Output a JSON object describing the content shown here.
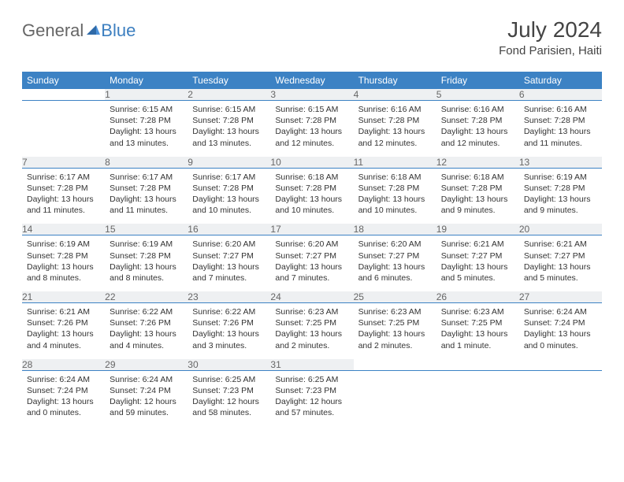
{
  "brand": {
    "text1": "General",
    "text2": "Blue"
  },
  "title": "July 2024",
  "location": "Fond Parisien, Haiti",
  "colors": {
    "header_bg": "#3c82c4",
    "header_text": "#ffffff",
    "daynum_bg": "#eef0f2",
    "daynum_text": "#666666",
    "border": "#3c82c4",
    "body_text": "#333333",
    "page_bg": "#ffffff",
    "brand_gray": "#666666",
    "brand_blue": "#3c7fc0"
  },
  "typography": {
    "title_fontsize": 28,
    "location_fontsize": 15,
    "header_fontsize": 12,
    "daynum_fontsize": 12,
    "cell_fontsize": 10.5,
    "brand_fontsize": 22
  },
  "dayNames": [
    "Sunday",
    "Monday",
    "Tuesday",
    "Wednesday",
    "Thursday",
    "Friday",
    "Saturday"
  ],
  "weeks": [
    [
      null,
      {
        "n": "1",
        "sunrise": "Sunrise: 6:15 AM",
        "sunset": "Sunset: 7:28 PM",
        "daylight": "Daylight: 13 hours and 13 minutes."
      },
      {
        "n": "2",
        "sunrise": "Sunrise: 6:15 AM",
        "sunset": "Sunset: 7:28 PM",
        "daylight": "Daylight: 13 hours and 13 minutes."
      },
      {
        "n": "3",
        "sunrise": "Sunrise: 6:15 AM",
        "sunset": "Sunset: 7:28 PM",
        "daylight": "Daylight: 13 hours and 12 minutes."
      },
      {
        "n": "4",
        "sunrise": "Sunrise: 6:16 AM",
        "sunset": "Sunset: 7:28 PM",
        "daylight": "Daylight: 13 hours and 12 minutes."
      },
      {
        "n": "5",
        "sunrise": "Sunrise: 6:16 AM",
        "sunset": "Sunset: 7:28 PM",
        "daylight": "Daylight: 13 hours and 12 minutes."
      },
      {
        "n": "6",
        "sunrise": "Sunrise: 6:16 AM",
        "sunset": "Sunset: 7:28 PM",
        "daylight": "Daylight: 13 hours and 11 minutes."
      }
    ],
    [
      {
        "n": "7",
        "sunrise": "Sunrise: 6:17 AM",
        "sunset": "Sunset: 7:28 PM",
        "daylight": "Daylight: 13 hours and 11 minutes."
      },
      {
        "n": "8",
        "sunrise": "Sunrise: 6:17 AM",
        "sunset": "Sunset: 7:28 PM",
        "daylight": "Daylight: 13 hours and 11 minutes."
      },
      {
        "n": "9",
        "sunrise": "Sunrise: 6:17 AM",
        "sunset": "Sunset: 7:28 PM",
        "daylight": "Daylight: 13 hours and 10 minutes."
      },
      {
        "n": "10",
        "sunrise": "Sunrise: 6:18 AM",
        "sunset": "Sunset: 7:28 PM",
        "daylight": "Daylight: 13 hours and 10 minutes."
      },
      {
        "n": "11",
        "sunrise": "Sunrise: 6:18 AM",
        "sunset": "Sunset: 7:28 PM",
        "daylight": "Daylight: 13 hours and 10 minutes."
      },
      {
        "n": "12",
        "sunrise": "Sunrise: 6:18 AM",
        "sunset": "Sunset: 7:28 PM",
        "daylight": "Daylight: 13 hours and 9 minutes."
      },
      {
        "n": "13",
        "sunrise": "Sunrise: 6:19 AM",
        "sunset": "Sunset: 7:28 PM",
        "daylight": "Daylight: 13 hours and 9 minutes."
      }
    ],
    [
      {
        "n": "14",
        "sunrise": "Sunrise: 6:19 AM",
        "sunset": "Sunset: 7:28 PM",
        "daylight": "Daylight: 13 hours and 8 minutes."
      },
      {
        "n": "15",
        "sunrise": "Sunrise: 6:19 AM",
        "sunset": "Sunset: 7:28 PM",
        "daylight": "Daylight: 13 hours and 8 minutes."
      },
      {
        "n": "16",
        "sunrise": "Sunrise: 6:20 AM",
        "sunset": "Sunset: 7:27 PM",
        "daylight": "Daylight: 13 hours and 7 minutes."
      },
      {
        "n": "17",
        "sunrise": "Sunrise: 6:20 AM",
        "sunset": "Sunset: 7:27 PM",
        "daylight": "Daylight: 13 hours and 7 minutes."
      },
      {
        "n": "18",
        "sunrise": "Sunrise: 6:20 AM",
        "sunset": "Sunset: 7:27 PM",
        "daylight": "Daylight: 13 hours and 6 minutes."
      },
      {
        "n": "19",
        "sunrise": "Sunrise: 6:21 AM",
        "sunset": "Sunset: 7:27 PM",
        "daylight": "Daylight: 13 hours and 5 minutes."
      },
      {
        "n": "20",
        "sunrise": "Sunrise: 6:21 AM",
        "sunset": "Sunset: 7:27 PM",
        "daylight": "Daylight: 13 hours and 5 minutes."
      }
    ],
    [
      {
        "n": "21",
        "sunrise": "Sunrise: 6:21 AM",
        "sunset": "Sunset: 7:26 PM",
        "daylight": "Daylight: 13 hours and 4 minutes."
      },
      {
        "n": "22",
        "sunrise": "Sunrise: 6:22 AM",
        "sunset": "Sunset: 7:26 PM",
        "daylight": "Daylight: 13 hours and 4 minutes."
      },
      {
        "n": "23",
        "sunrise": "Sunrise: 6:22 AM",
        "sunset": "Sunset: 7:26 PM",
        "daylight": "Daylight: 13 hours and 3 minutes."
      },
      {
        "n": "24",
        "sunrise": "Sunrise: 6:23 AM",
        "sunset": "Sunset: 7:25 PM",
        "daylight": "Daylight: 13 hours and 2 minutes."
      },
      {
        "n": "25",
        "sunrise": "Sunrise: 6:23 AM",
        "sunset": "Sunset: 7:25 PM",
        "daylight": "Daylight: 13 hours and 2 minutes."
      },
      {
        "n": "26",
        "sunrise": "Sunrise: 6:23 AM",
        "sunset": "Sunset: 7:25 PM",
        "daylight": "Daylight: 13 hours and 1 minute."
      },
      {
        "n": "27",
        "sunrise": "Sunrise: 6:24 AM",
        "sunset": "Sunset: 7:24 PM",
        "daylight": "Daylight: 13 hours and 0 minutes."
      }
    ],
    [
      {
        "n": "28",
        "sunrise": "Sunrise: 6:24 AM",
        "sunset": "Sunset: 7:24 PM",
        "daylight": "Daylight: 13 hours and 0 minutes."
      },
      {
        "n": "29",
        "sunrise": "Sunrise: 6:24 AM",
        "sunset": "Sunset: 7:24 PM",
        "daylight": "Daylight: 12 hours and 59 minutes."
      },
      {
        "n": "30",
        "sunrise": "Sunrise: 6:25 AM",
        "sunset": "Sunset: 7:23 PM",
        "daylight": "Daylight: 12 hours and 58 minutes."
      },
      {
        "n": "31",
        "sunrise": "Sunrise: 6:25 AM",
        "sunset": "Sunset: 7:23 PM",
        "daylight": "Daylight: 12 hours and 57 minutes."
      },
      null,
      null,
      null
    ]
  ]
}
